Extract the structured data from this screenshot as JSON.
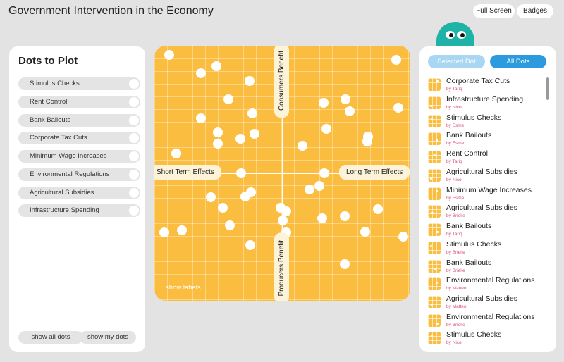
{
  "header": {
    "title": "Government Intervention in the Economy",
    "fullscreen_label": "Full Screen",
    "badges_label": "Badges"
  },
  "left_panel": {
    "title": "Dots to Plot",
    "items": [
      {
        "label": "Stimulus Checks"
      },
      {
        "label": "Rent Control"
      },
      {
        "label": "Bank Bailouts"
      },
      {
        "label": "Corporate Tax Cuts"
      },
      {
        "label": "Minimum Wage Increases"
      },
      {
        "label": "Environmental Regulations"
      },
      {
        "label": "Agricultural Subsidies"
      },
      {
        "label": "Infrastructure Spending"
      }
    ],
    "show_all_label": "show all dots",
    "show_my_label": "show my dots"
  },
  "plot": {
    "top_label": "Consumers Benefit",
    "bottom_label": "Producers Benefit",
    "left_label": "Short Term Effects",
    "right_label": "Long Term Effects",
    "show_labels": "show labels",
    "colors": {
      "background": "#fbbd3f",
      "dot": "#ffffff"
    }
  },
  "right_panel": {
    "tab_selected": "Selected Dot",
    "tab_all": "All Dots",
    "items": [
      {
        "name": "Corporate Tax Cuts",
        "author": "by Tariq"
      },
      {
        "name": "Infrastructure Spending",
        "author": "by Nico"
      },
      {
        "name": "Stimulus Checks",
        "author": "by Esme"
      },
      {
        "name": "Bank Bailouts",
        "author": "by Esme"
      },
      {
        "name": "Rent Control",
        "author": "by Tariq"
      },
      {
        "name": "Agricultural Subsidies",
        "author": "by Nico"
      },
      {
        "name": "Minimum Wage Increases",
        "author": "by Esme"
      },
      {
        "name": "Agricultural Subsidies",
        "author": "by Brielle"
      },
      {
        "name": "Bank Bailouts",
        "author": "by Tariq"
      },
      {
        "name": "Stimulus Checks",
        "author": "by Brielle"
      },
      {
        "name": "Bank Bailouts",
        "author": "by Brielle"
      },
      {
        "name": "Environmental Regulations",
        "author": "by Matteo"
      },
      {
        "name": "Agricultural Subsidies",
        "author": "by Matteo"
      },
      {
        "name": "Environmental Regulations",
        "author": "by Brielle"
      },
      {
        "name": "Stimulus Checks",
        "author": "by Nico"
      }
    ],
    "accent_color": "#2b9bde",
    "author_color": "#d94f7b"
  }
}
